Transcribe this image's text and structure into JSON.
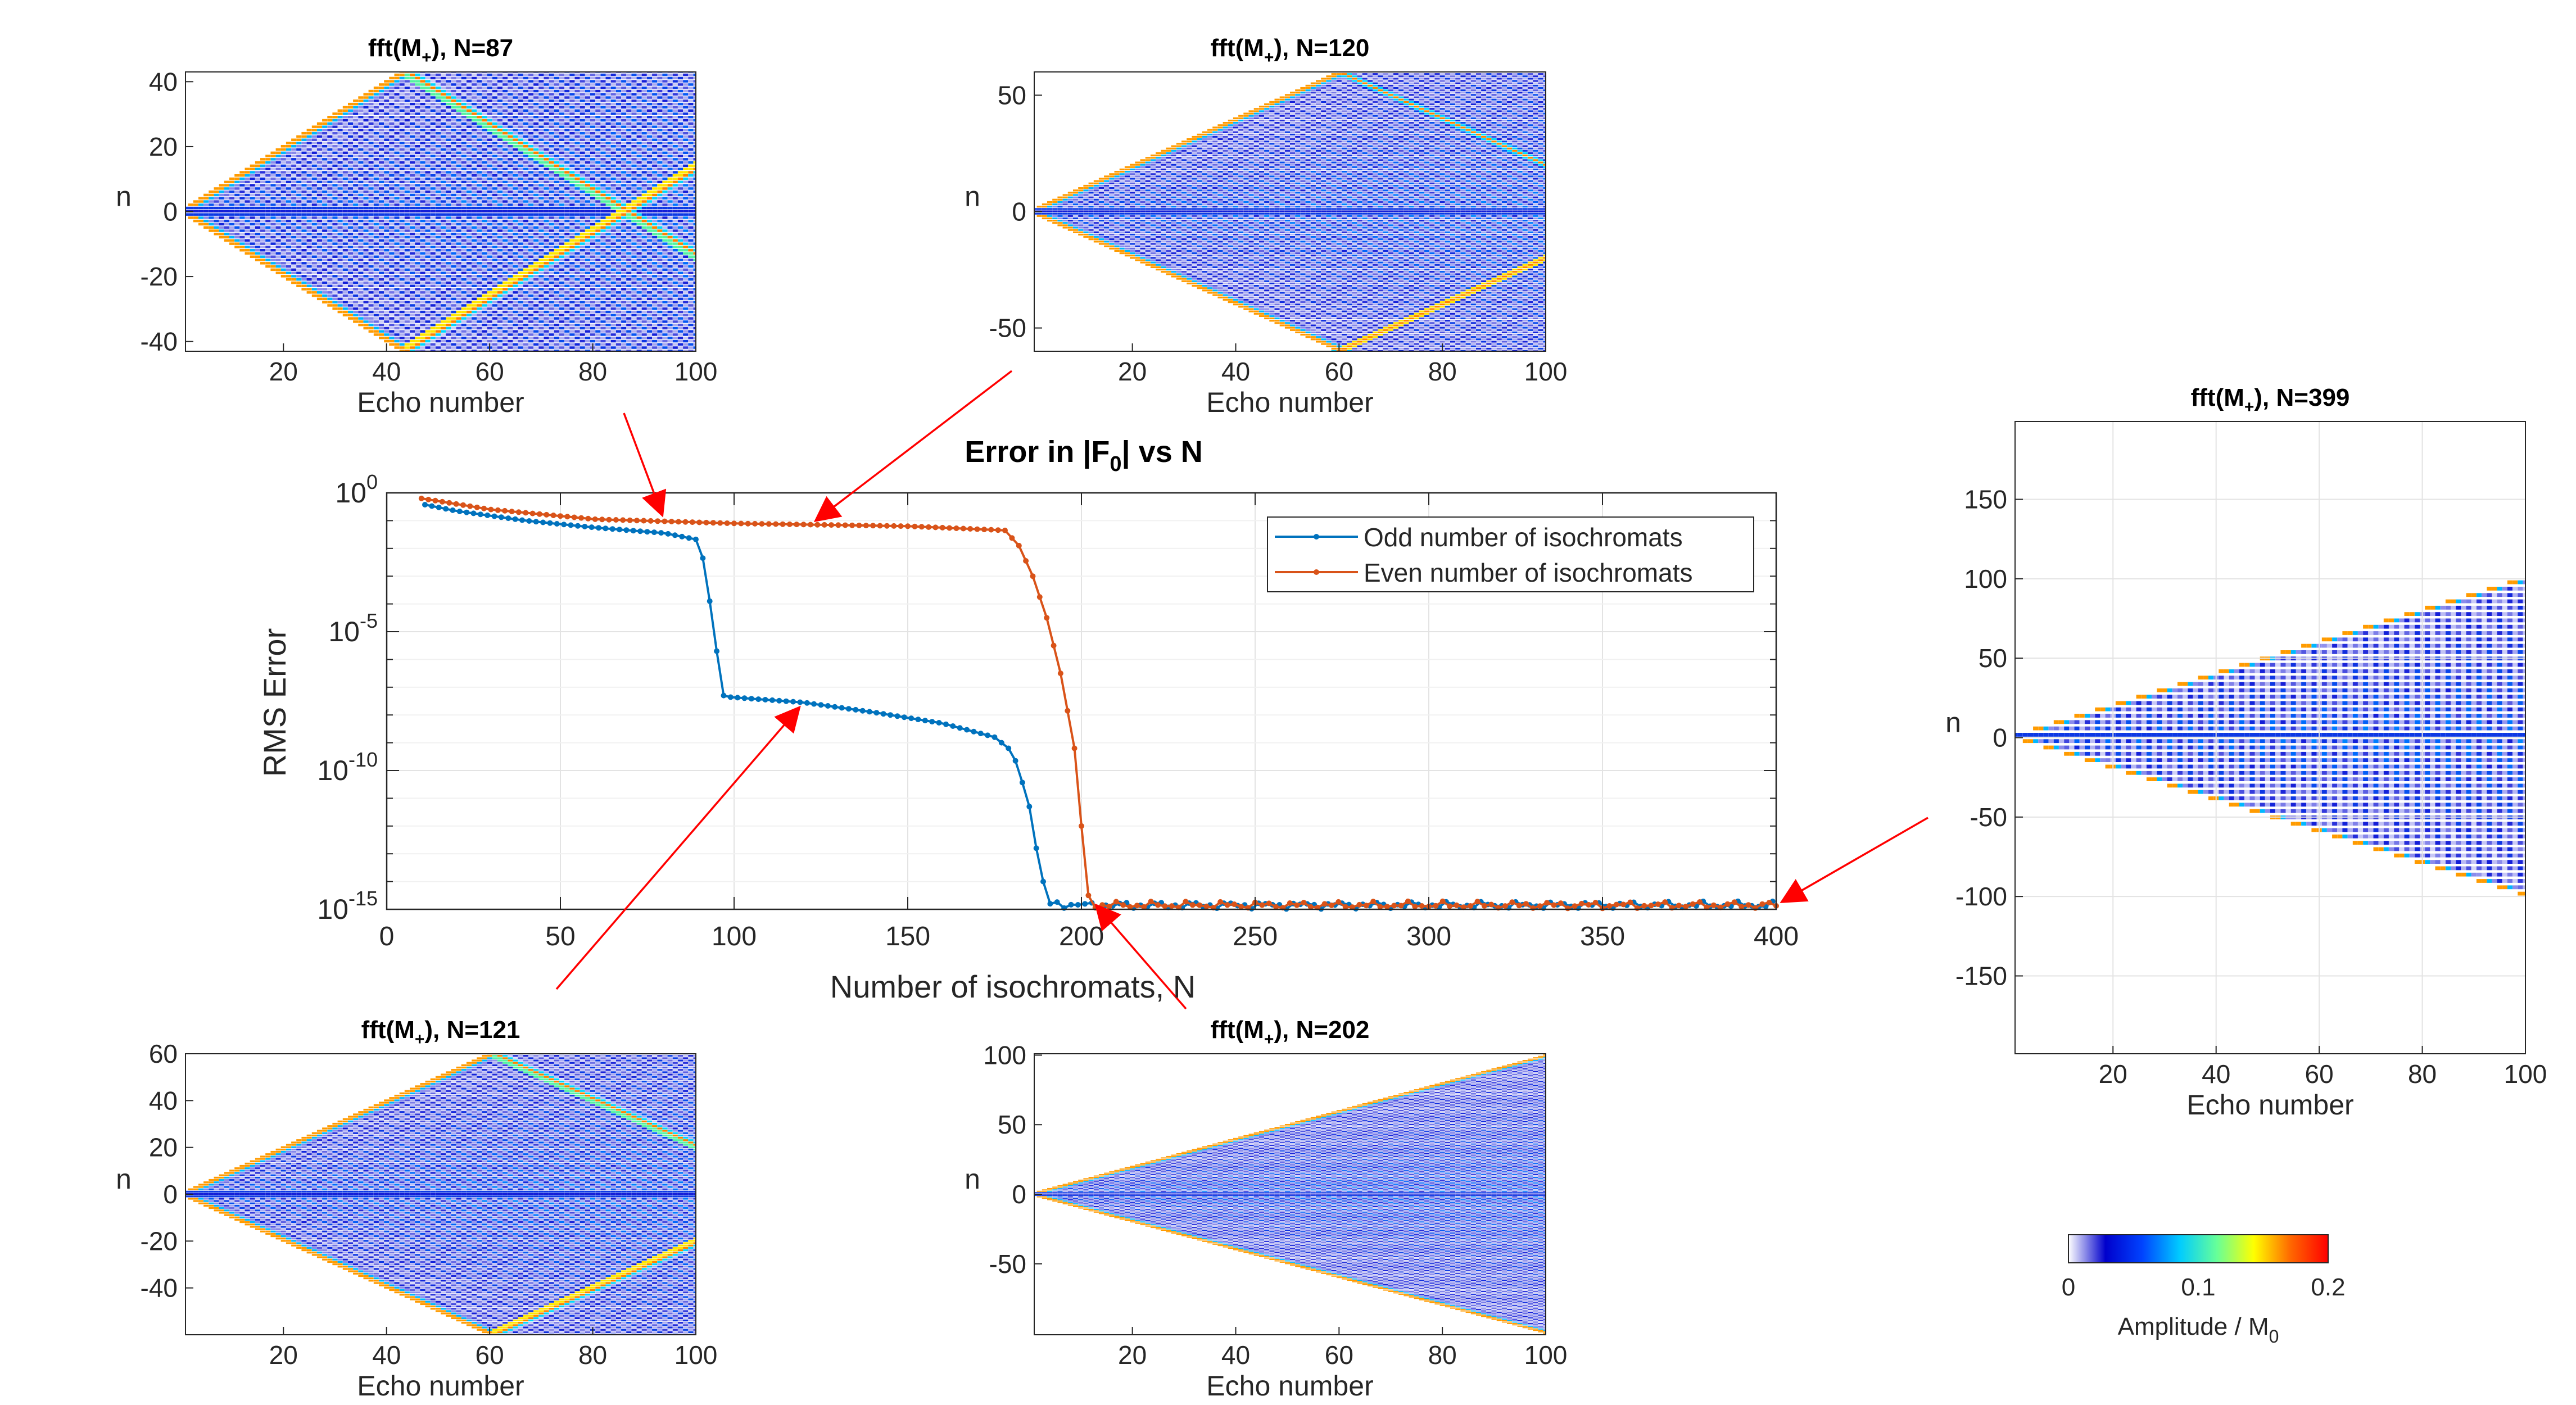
{
  "chart_data": [
    {
      "id": "main",
      "type": "line",
      "title": "Error in |F",
      "title_sub": "0",
      "title_suffix": "| vs N",
      "xlabel": "Number of isochromats, N",
      "ylabel": "RMS Error",
      "xlim": [
        0,
        400
      ],
      "ylim_log10": [
        -15,
        0
      ],
      "xticks": [
        0,
        50,
        100,
        150,
        200,
        250,
        300,
        350,
        400
      ],
      "yticks": [
        {
          "base": "10",
          "exp": "0",
          "log": 0
        },
        {
          "base": "10",
          "exp": "-5",
          "log": -5
        },
        {
          "base": "10",
          "exp": "-10",
          "log": -10
        },
        {
          "base": "10",
          "exp": "-15",
          "log": -15
        }
      ],
      "scale": "log",
      "grid": true,
      "legend_position": "top-right",
      "series": [
        {
          "name": "Odd number of isochromats",
          "color": "#0072BD",
          "points_log10": [
            [
              10,
              -0.4
            ],
            [
              20,
              -0.65
            ],
            [
              40,
              -1.0
            ],
            [
              60,
              -1.25
            ],
            [
              80,
              -1.45
            ],
            [
              90,
              -1.7
            ],
            [
              92,
              -3.0
            ],
            [
              94,
              -4.8
            ],
            [
              96,
              -6.6
            ],
            [
              97,
              -7.3
            ],
            [
              98,
              -7.35
            ],
            [
              120,
              -7.55
            ],
            [
              140,
              -7.9
            ],
            [
              160,
              -8.3
            ],
            [
              175,
              -8.8
            ],
            [
              180,
              -9.3
            ],
            [
              182,
              -10.0
            ],
            [
              185,
              -11.3
            ],
            [
              187,
              -12.8
            ],
            [
              189,
              -14.0
            ],
            [
              191,
              -14.8
            ],
            [
              200,
              -14.85
            ],
            [
              400,
              -14.85
            ]
          ],
          "noise_from_x": 193
        },
        {
          "name": "Even number of isochromats",
          "color": "#D95319",
          "points_log10": [
            [
              10,
              -0.2
            ],
            [
              30,
              -0.6
            ],
            [
              60,
              -0.95
            ],
            [
              100,
              -1.1
            ],
            [
              150,
              -1.2
            ],
            [
              178,
              -1.35
            ],
            [
              182,
              -1.9
            ],
            [
              186,
              -3.0
            ],
            [
              190,
              -4.5
            ],
            [
              194,
              -6.5
            ],
            [
              198,
              -9.2
            ],
            [
              200,
              -12.0
            ],
            [
              202,
              -14.5
            ],
            [
              204,
              -14.85
            ],
            [
              400,
              -14.85
            ]
          ],
          "noise_from_x": 204
        }
      ]
    },
    {
      "id": "inset-87",
      "type": "heatmap",
      "title": "fft(M",
      "title_sub": "+",
      "title_suffix": "), N=87",
      "N": 87,
      "xlabel": "Echo number",
      "ylabel": "n",
      "xlim": [
        1,
        100
      ],
      "ylim": [
        -43,
        43
      ],
      "xticks": [
        20,
        40,
        60,
        80,
        100
      ],
      "yticks": [
        40,
        20,
        0,
        -20,
        -40
      ]
    },
    {
      "id": "inset-120",
      "type": "heatmap",
      "title": "fft(M",
      "title_sub": "+",
      "title_suffix": "), N=120",
      "N": 120,
      "xlabel": "Echo number",
      "ylabel": "n",
      "xlim": [
        1,
        100
      ],
      "ylim": [
        -60,
        60
      ],
      "xticks": [
        20,
        40,
        60,
        80,
        100
      ],
      "yticks": [
        50,
        0,
        -50
      ]
    },
    {
      "id": "inset-121",
      "type": "heatmap",
      "title": "fft(M",
      "title_sub": "+",
      "title_suffix": "), N=121",
      "N": 121,
      "xlabel": "Echo number",
      "ylabel": "n",
      "xlim": [
        1,
        100
      ],
      "ylim": [
        -60,
        60
      ],
      "xticks": [
        20,
        40,
        60,
        80,
        100
      ],
      "yticks": [
        60,
        40,
        20,
        0,
        -20,
        -40
      ]
    },
    {
      "id": "inset-202",
      "type": "heatmap",
      "title": "fft(M",
      "title_sub": "+",
      "title_suffix": "), N=202",
      "N": 202,
      "xlabel": "Echo number",
      "ylabel": "n",
      "xlim": [
        1,
        100
      ],
      "ylim": [
        -101,
        101
      ],
      "xticks": [
        20,
        40,
        60,
        80,
        100
      ],
      "yticks": [
        100,
        50,
        0,
        -50
      ]
    },
    {
      "id": "inset-399",
      "type": "heatmap",
      "title": "fft(M",
      "title_sub": "+",
      "title_suffix": "), N=399",
      "N": 399,
      "xlabel": "Echo number",
      "ylabel": "n",
      "xlim": [
        1,
        100
      ],
      "ylim": [
        -199,
        199
      ],
      "xticks": [
        20,
        40,
        60,
        80,
        100
      ],
      "yticks": [
        150,
        100,
        50,
        0,
        -50,
        -100,
        -150
      ]
    }
  ],
  "colorbar": {
    "ticks": [
      "0",
      "0.1",
      "0.2"
    ],
    "label": "Amplitude / M",
    "label_sub": "0",
    "range": [
      0,
      0.2
    ],
    "stops": [
      "#ffffff",
      "#0000cc",
      "#0044ff",
      "#00ccff",
      "#66ff99",
      "#ffff00",
      "#ff6600",
      "#ff0000"
    ]
  },
  "arrows": [
    {
      "from_inset": 87,
      "to_x": 80,
      "to_series": "Even number of isochromats"
    },
    {
      "from_inset": 120,
      "to_x": 122,
      "to_series": "Even number of isochromats"
    },
    {
      "from_inset": 121,
      "to_x": 120,
      "to_series": "Odd number of isochromats"
    },
    {
      "from_inset": 202,
      "to_x": 203,
      "to_series": "Even number of isochromats"
    },
    {
      "from_inset": 399,
      "to_x": 400,
      "to_series": "Odd number of isochromats"
    }
  ],
  "colors": {
    "arrow": "#ff0000",
    "axis": "#262626",
    "grid": "#e3e3e3"
  }
}
